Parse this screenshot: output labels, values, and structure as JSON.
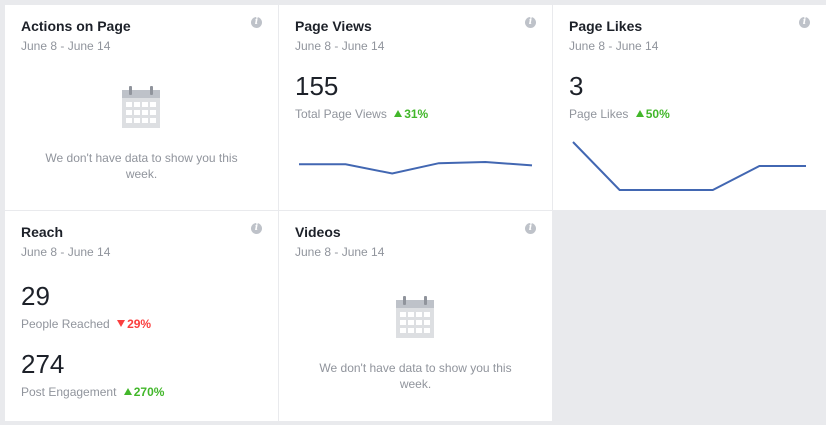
{
  "accent_line": "#4267b2",
  "cards": {
    "actions": {
      "title": "Actions on Page",
      "date_range": "June 8 - June 14",
      "info_icon": "i",
      "no_data_line1": "We don't have data to show you this",
      "no_data_line2": "week."
    },
    "views": {
      "title": "Page Views",
      "date_range": "June 8 - June 14",
      "info_icon": "i",
      "value": "155",
      "metric_label": "Total Page Views",
      "delta": "31%",
      "delta_direction": "up",
      "chart_data": {
        "type": "line",
        "values": [
          9,
          9,
          5,
          9.5,
          10,
          8.5
        ],
        "ylim": [
          0,
          20
        ],
        "color": "#4267b2"
      }
    },
    "likes": {
      "title": "Page Likes",
      "date_range": "June 8 - June 14",
      "info_icon": "i",
      "value": "3",
      "metric_label": "Page Likes",
      "delta": "50%",
      "delta_direction": "up",
      "chart_data": {
        "type": "line",
        "values": [
          2,
          0,
          0,
          0,
          1,
          1
        ],
        "ylim": [
          0,
          2
        ],
        "color": "#4267b2"
      }
    },
    "reach": {
      "title": "Reach",
      "date_range": "June 8 - June 14",
      "info_icon": "i",
      "value1": "29",
      "metric1_label": "People Reached",
      "delta1": "29%",
      "delta1_direction": "down",
      "value2": "274",
      "metric2_label": "Post Engagement",
      "delta2": "270%",
      "delta2_direction": "up"
    },
    "videos": {
      "title": "Videos",
      "date_range": "June 8 - June 14",
      "info_icon": "i",
      "no_data_line1": "We don't have data to show you this",
      "no_data_line2": "week."
    }
  },
  "icons": {
    "info": "info-icon",
    "calendar": "calendar-icon",
    "trend_up": "triangle-up-icon",
    "trend_down": "triangle-down-icon"
  }
}
